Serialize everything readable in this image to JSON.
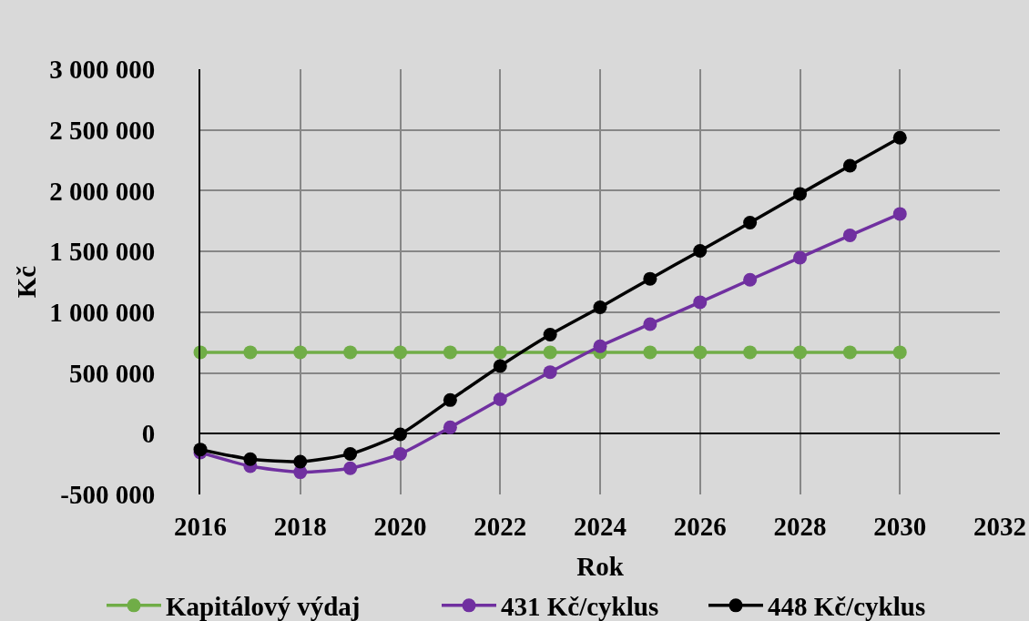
{
  "chart_data": {
    "type": "line",
    "xlabel": "Rok",
    "ylabel": "Kč",
    "x": [
      2016,
      2017,
      2018,
      2019,
      2020,
      2021,
      2022,
      2023,
      2024,
      2025,
      2026,
      2027,
      2028,
      2029,
      2030
    ],
    "xlim": [
      2016,
      2032
    ],
    "xticks": [
      2016,
      2018,
      2020,
      2022,
      2024,
      2026,
      2028,
      2030,
      2032
    ],
    "ylim": [
      -500000,
      3000000
    ],
    "yticks": [
      {
        "value": -500000,
        "label": "-500 000"
      },
      0,
      {
        "value": 500000,
        "label": "500 000"
      },
      {
        "value": 1000000,
        "label": "1 000 000"
      },
      {
        "value": 1500000,
        "label": "1 500 000"
      },
      {
        "value": 2000000,
        "label": "2 000 000"
      },
      {
        "value": 2500000,
        "label": "2 500 000"
      },
      {
        "value": 3000000,
        "label": "3 000 000"
      }
    ],
    "grid": true,
    "legend": "bottom",
    "marker": "circle",
    "line_style": "solid",
    "series": [
      {
        "name": "Kapitálový výdaj",
        "color": "#70ad47",
        "values": [
          670000,
          670000,
          670000,
          670000,
          670000,
          670000,
          670000,
          670000,
          670000,
          670000,
          670000,
          670000,
          670000,
          670000,
          670000
        ]
      },
      {
        "name": "431 Kč/cyklus",
        "color": "#7030a0",
        "values": [
          -155000,
          -268000,
          -317000,
          -285000,
          -167000,
          52000,
          283000,
          507000,
          720000,
          902000,
          1082000,
          1267000,
          1449000,
          1632000,
          1809000
        ]
      },
      {
        "name": "448 Kč/cyklus",
        "color": "#000000",
        "values": [
          -130000,
          -210000,
          -230000,
          -167000,
          -5000,
          277000,
          557000,
          815000,
          1040000,
          1275000,
          1505000,
          1737000,
          1974000,
          2206000,
          2436000
        ]
      }
    ]
  }
}
